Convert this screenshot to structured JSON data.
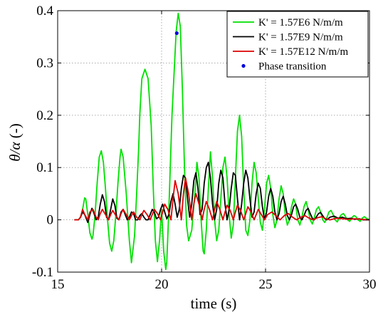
{
  "chart_data": {
    "type": "line",
    "xlabel": "time (s)",
    "ylabel_math": "θ/α",
    "ylabel_unit": " (-)",
    "xlim": [
      15,
      30
    ],
    "ylim": [
      -0.1,
      0.4
    ],
    "x_ticks": [
      15,
      20,
      25,
      30
    ],
    "y_ticks": [
      -0.1,
      0,
      0.1,
      0.2,
      0.3,
      0.4
    ],
    "y_tick_labels": [
      "-0.1",
      "0",
      "0.1",
      "0.2",
      "0.3",
      "0.4"
    ],
    "grid": "dotted",
    "legend_position": "top-right",
    "series": [
      {
        "name": "K' = 1.57E6 N/m/m",
        "color": "#00e000",
        "x": [
          15.9,
          16.0,
          16.1,
          16.2,
          16.3,
          16.35,
          16.45,
          16.55,
          16.65,
          16.7,
          16.8,
          16.9,
          17.0,
          17.1,
          17.2,
          17.3,
          17.4,
          17.5,
          17.6,
          17.7,
          17.8,
          17.9,
          18.0,
          18.05,
          18.15,
          18.3,
          18.45,
          18.55,
          18.7,
          18.8,
          18.9,
          18.95,
          19.05,
          19.2,
          19.35,
          19.5,
          19.6,
          19.7,
          19.8,
          19.9,
          20.0,
          20.1,
          20.2,
          20.25,
          20.35,
          20.5,
          20.7,
          20.8,
          20.9,
          21.0,
          21.1,
          21.2,
          21.3,
          21.45,
          21.6,
          21.7,
          21.8,
          21.9,
          22.0,
          22.05,
          22.15,
          22.25,
          22.35,
          22.45,
          22.55,
          22.65,
          22.75,
          22.85,
          22.95,
          23.05,
          23.15,
          23.25,
          23.35,
          23.45,
          23.55,
          23.65,
          23.75,
          23.85,
          23.95,
          24.05,
          24.15,
          24.25,
          24.35,
          24.45,
          24.55,
          24.65,
          24.75,
          24.85,
          24.95,
          25.05,
          25.15,
          25.25,
          25.35,
          25.45,
          25.55,
          25.65,
          25.75,
          25.85,
          25.95,
          26.05,
          26.15,
          26.25,
          26.35,
          26.45,
          26.55,
          26.65,
          26.75,
          26.85,
          26.95,
          27.05,
          27.15,
          27.25,
          27.35,
          27.45,
          27.55,
          27.65,
          27.75,
          27.85,
          27.95,
          28.05,
          28.15,
          28.25,
          28.35,
          28.45,
          28.55,
          28.65,
          28.75,
          28.85,
          28.95,
          29.05,
          29.15,
          29.25,
          29.35,
          29.45,
          29.55,
          29.65,
          29.75,
          29.85,
          30.0
        ],
        "y": [
          0,
          0,
          0.005,
          0.02,
          0.042,
          0.04,
          0.01,
          -0.025,
          -0.037,
          -0.03,
          0.01,
          0.07,
          0.12,
          0.132,
          0.11,
          0.06,
          0.0,
          -0.045,
          -0.06,
          -0.04,
          0.01,
          0.07,
          0.12,
          0.135,
          0.12,
          0.05,
          -0.04,
          -0.082,
          -0.03,
          0.05,
          0.14,
          0.2,
          0.27,
          0.288,
          0.27,
          0.18,
          0.06,
          -0.04,
          -0.08,
          -0.04,
          0.02,
          -0.06,
          -0.095,
          -0.08,
          0.02,
          0.2,
          0.36,
          0.395,
          0.37,
          0.25,
          0.1,
          -0.01,
          -0.04,
          -0.02,
          0.05,
          0.11,
          0.08,
          0.0,
          -0.06,
          -0.065,
          -0.02,
          0.06,
          0.13,
          0.08,
          0.0,
          -0.04,
          -0.02,
          0.04,
          0.1,
          0.12,
          0.08,
          0.01,
          -0.035,
          -0.01,
          0.08,
          0.17,
          0.2,
          0.16,
          0.06,
          -0.02,
          -0.03,
          0.0,
          0.07,
          0.11,
          0.09,
          0.04,
          -0.005,
          -0.02,
          0.02,
          0.07,
          0.085,
          0.06,
          0.01,
          -0.015,
          0.0,
          0.04,
          0.065,
          0.05,
          0.01,
          -0.01,
          0.0,
          0.025,
          0.04,
          0.03,
          0.0,
          -0.01,
          0.005,
          0.025,
          0.035,
          0.02,
          0.0,
          -0.008,
          0.005,
          0.02,
          0.025,
          0.015,
          0.0,
          -0.005,
          0.004,
          0.015,
          0.018,
          0.01,
          0.0,
          -0.004,
          0.004,
          0.01,
          0.012,
          0.006,
          0.0,
          -0.003,
          0.004,
          0.008,
          0.006,
          0.0,
          -0.003,
          0.003,
          0.006,
          0.003,
          0.0
        ]
      },
      {
        "name": "K' = 1.57E9 N/m/m",
        "color": "#000000",
        "x": [
          15.8,
          16.0,
          16.1,
          16.2,
          16.3,
          16.45,
          16.55,
          16.65,
          16.75,
          16.85,
          16.95,
          17.05,
          17.15,
          17.25,
          17.35,
          17.45,
          17.55,
          17.65,
          17.75,
          17.85,
          17.95,
          18.05,
          18.15,
          18.25,
          18.35,
          18.45,
          18.55,
          18.65,
          18.75,
          18.85,
          18.95,
          19.05,
          19.15,
          19.25,
          19.35,
          19.45,
          19.55,
          19.65,
          19.75,
          19.85,
          19.95,
          20.05,
          20.15,
          20.25,
          20.35,
          20.45,
          20.55,
          20.65,
          20.75,
          20.85,
          20.95,
          21.05,
          21.15,
          21.25,
          21.35,
          21.45,
          21.55,
          21.65,
          21.75,
          21.85,
          21.95,
          22.05,
          22.15,
          22.25,
          22.35,
          22.45,
          22.55,
          22.65,
          22.75,
          22.85,
          22.95,
          23.05,
          23.15,
          23.25,
          23.35,
          23.45,
          23.55,
          23.65,
          23.75,
          23.85,
          23.95,
          24.05,
          24.15,
          24.25,
          24.35,
          24.45,
          24.55,
          24.65,
          24.75,
          24.85,
          24.95,
          25.05,
          25.15,
          25.25,
          25.35,
          25.45,
          25.55,
          25.65,
          25.75,
          25.85,
          25.95,
          26.05,
          26.15,
          26.25,
          26.35,
          26.45,
          26.55,
          26.65,
          26.75,
          26.85,
          26.95,
          27.05,
          27.15,
          27.25,
          27.35,
          27.45,
          27.55,
          27.65,
          27.75,
          27.85,
          27.95,
          28.1,
          28.3,
          28.5,
          28.7,
          28.9,
          29.1,
          29.3,
          29.5,
          29.7,
          30.0
        ],
        "y": [
          0,
          0,
          0.005,
          0.015,
          0.01,
          -0.005,
          0.01,
          0.022,
          0.012,
          0.0,
          0.005,
          0.03,
          0.048,
          0.035,
          0.005,
          0.0,
          0.02,
          0.04,
          0.028,
          0.003,
          0.0,
          0.015,
          0.02,
          0.01,
          0.0,
          0.005,
          0.015,
          0.012,
          0.0,
          0.0,
          0.008,
          0.012,
          0.005,
          0.0,
          0.0,
          0.01,
          0.02,
          0.015,
          0.002,
          0.005,
          0.02,
          0.03,
          0.015,
          0.002,
          0.01,
          0.035,
          0.05,
          0.03,
          0.005,
          0.02,
          0.06,
          0.085,
          0.08,
          0.04,
          0.005,
          0.03,
          0.075,
          0.09,
          0.06,
          0.01,
          0.02,
          0.07,
          0.1,
          0.11,
          0.08,
          0.03,
          0.0,
          0.02,
          0.07,
          0.095,
          0.08,
          0.03,
          0.0,
          0.02,
          0.06,
          0.09,
          0.085,
          0.04,
          0.0,
          0.03,
          0.07,
          0.095,
          0.08,
          0.04,
          0.005,
          0.015,
          0.05,
          0.07,
          0.06,
          0.025,
          0.0,
          0.015,
          0.045,
          0.06,
          0.045,
          0.015,
          0.0,
          0.012,
          0.035,
          0.045,
          0.03,
          0.008,
          0.0,
          0.01,
          0.025,
          0.03,
          0.02,
          0.005,
          0.0,
          0.008,
          0.018,
          0.022,
          0.012,
          0.003,
          0.0,
          0.006,
          0.012,
          0.014,
          0.008,
          0.002,
          0.0,
          0.005,
          0.007,
          0.003,
          0.005,
          0.002,
          0.003,
          0.001,
          0.002,
          0.0,
          0.0
        ]
      },
      {
        "name": "K' = 1.57E12 N/m/m",
        "color": "#dd0000",
        "x": [
          15.8,
          16.0,
          16.1,
          16.2,
          16.3,
          16.45,
          16.55,
          16.7,
          16.85,
          16.95,
          17.05,
          17.15,
          17.3,
          17.45,
          17.55,
          17.65,
          17.8,
          17.95,
          18.05,
          18.15,
          18.3,
          18.45,
          18.55,
          18.65,
          18.8,
          18.95,
          19.05,
          19.15,
          19.3,
          19.45,
          19.55,
          19.65,
          19.8,
          19.95,
          20.05,
          20.15,
          20.3,
          20.45,
          20.55,
          20.65,
          20.8,
          20.95,
          21.05,
          21.15,
          21.3,
          21.45,
          21.55,
          21.65,
          21.8,
          21.95,
          22.05,
          22.15,
          22.3,
          22.45,
          22.55,
          22.65,
          22.8,
          22.95,
          23.05,
          23.15,
          23.3,
          23.45,
          23.55,
          23.65,
          23.8,
          23.95,
          24.05,
          24.15,
          24.3,
          24.45,
          24.55,
          24.65,
          24.8,
          24.95,
          25.1,
          25.3,
          25.5,
          25.7,
          25.9,
          26.1,
          26.3,
          26.5,
          26.7,
          26.9,
          27.1,
          27.3,
          27.5,
          27.7,
          27.9,
          28.1,
          28.4,
          28.7,
          29.0,
          29.3,
          29.6,
          30.0
        ],
        "y": [
          0,
          0,
          0.005,
          0.02,
          0.01,
          0.0,
          0.015,
          0.02,
          0.005,
          0.0,
          0.012,
          0.02,
          0.01,
          0.0,
          0.01,
          0.018,
          0.008,
          0.0,
          0.012,
          0.02,
          0.01,
          0.0,
          0.008,
          0.015,
          0.005,
          0.0,
          0.01,
          0.018,
          0.01,
          0.0,
          0.01,
          0.02,
          0.012,
          0.0,
          0.015,
          0.03,
          0.02,
          0.0,
          0.04,
          0.075,
          0.05,
          0.0,
          0.05,
          0.08,
          0.05,
          0.0,
          0.03,
          0.05,
          0.03,
          0.0,
          0.02,
          0.035,
          0.02,
          0.0,
          0.02,
          0.035,
          0.02,
          0.0,
          0.015,
          0.028,
          0.018,
          0.0,
          0.015,
          0.028,
          0.018,
          0.0,
          0.012,
          0.025,
          0.015,
          0.0,
          0.01,
          0.02,
          0.01,
          0.0,
          0.01,
          0.015,
          0.008,
          0.0,
          0.008,
          0.012,
          0.005,
          0.0,
          0.005,
          0.008,
          0.003,
          0.0,
          0.004,
          0.006,
          0.002,
          0.0,
          0.003,
          0.002,
          0.001,
          0.002,
          0.001,
          0.0
        ]
      }
    ],
    "markers": [
      {
        "name": "Phase transition",
        "color": "#0000dd",
        "x": [
          20.73
        ],
        "y": [
          0.357
        ]
      }
    ]
  },
  "legend": {
    "entries": [
      {
        "label": "K' = 1.57E6 N/m/m",
        "color": "#00e000",
        "kind": "line"
      },
      {
        "label": "K' = 1.57E9 N/m/m",
        "color": "#000000",
        "kind": "line"
      },
      {
        "label": "K' = 1.57E12 N/m/m",
        "color": "#dd0000",
        "kind": "line"
      },
      {
        "label": "Phase transition",
        "color": "#0000dd",
        "kind": "marker"
      }
    ]
  }
}
